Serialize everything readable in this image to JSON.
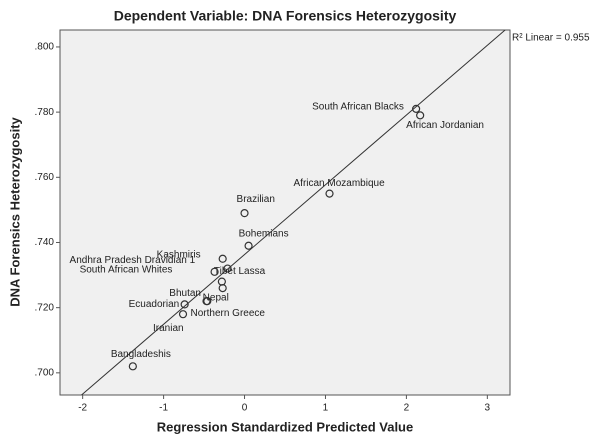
{
  "chart_data": {
    "type": "scatter",
    "title": "Dependent Variable: DNA Forensics Heterozygosity",
    "x_label": "Regression Standardized Predicted Value",
    "y_label": "DNA Forensics Heterozygosity",
    "annotation": "R² Linear = 0.955",
    "xlim": [
      -2.28,
      3.28
    ],
    "xticks": [
      -2,
      -1,
      0,
      1,
      2,
      3
    ],
    "ylim": [
      0.6932,
      0.8052
    ],
    "yticks": [
      {
        "value": 0.7,
        "label": ".700"
      },
      {
        "value": 0.72,
        "label": ".720"
      },
      {
        "value": 0.74,
        "label": ".740"
      },
      {
        "value": 0.76,
        "label": ".760"
      },
      {
        "value": 0.78,
        "label": ".780"
      },
      {
        "value": 0.8,
        "label": ".800"
      }
    ],
    "fit_line": {
      "intercept": 0.7363,
      "slope": 0.0214
    },
    "color": "#333333",
    "points": [
      {
        "label": "South African Blacks",
        "x": 2.12,
        "y": 0.781
      },
      {
        "label": "African Jordanian",
        "x": 2.17,
        "y": 0.779
      },
      {
        "label": "African Mozambique",
        "x": 1.05,
        "y": 0.755
      },
      {
        "label": "Brazilian",
        "x": 0.0,
        "y": 0.749
      },
      {
        "label": "Bohemians",
        "x": 0.05,
        "y": 0.739
      },
      {
        "label": "Andhra Pradesh Dravidian 1",
        "x": -0.21,
        "y": 0.732
      },
      {
        "label": "Kashmiris",
        "x": -0.27,
        "y": 0.735
      },
      {
        "label": "Tibet Lassa",
        "x": -0.28,
        "y": 0.728
      },
      {
        "label": "South African Whites",
        "x": -0.37,
        "y": 0.731
      },
      {
        "label": "Bhutan",
        "x": -0.46,
        "y": 0.722
      },
      {
        "label": "Nepal",
        "x": -0.27,
        "y": 0.726
      },
      {
        "label": "Ecuadorian",
        "x": -0.74,
        "y": 0.721
      },
      {
        "label": "Northern Greece",
        "x": -0.47,
        "y": 0.722
      },
      {
        "label": "Iranian",
        "x": -0.76,
        "y": 0.718
      },
      {
        "label": "Bangladeshis",
        "x": -1.38,
        "y": 0.702
      }
    ]
  }
}
